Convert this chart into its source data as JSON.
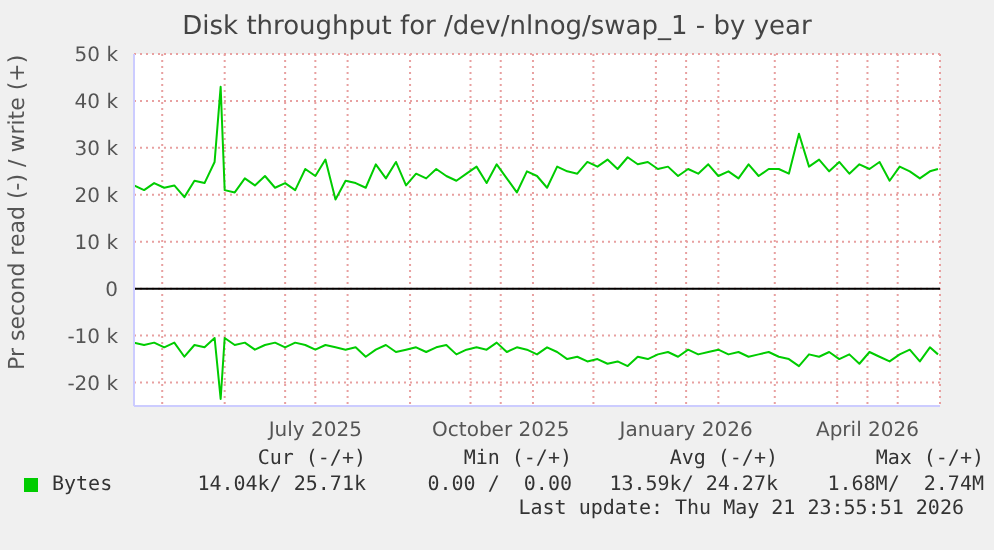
{
  "chart_data": {
    "type": "line",
    "title": "Disk throughput for /dev/nlnog/swap_1 - by year",
    "ylabel": "Pr second read (-) / write (+)",
    "x": [
      "2025-04-17",
      "2025-04-22",
      "2025-04-27",
      "2025-05-02",
      "2025-05-07",
      "2025-05-12",
      "2025-05-17",
      "2025-05-22",
      "2025-05-27",
      "2025-05-30",
      "2025-06-01",
      "2025-06-06",
      "2025-06-11",
      "2025-06-16",
      "2025-06-21",
      "2025-06-26",
      "2025-07-01",
      "2025-07-06",
      "2025-07-11",
      "2025-07-16",
      "2025-07-21",
      "2025-07-26",
      "2025-07-31",
      "2025-08-05",
      "2025-08-10",
      "2025-08-15",
      "2025-08-20",
      "2025-08-25",
      "2025-08-30",
      "2025-09-04",
      "2025-09-09",
      "2025-09-14",
      "2025-09-19",
      "2025-09-24",
      "2025-09-29",
      "2025-10-04",
      "2025-10-09",
      "2025-10-14",
      "2025-10-19",
      "2025-10-24",
      "2025-10-29",
      "2025-11-03",
      "2025-11-08",
      "2025-11-13",
      "2025-11-18",
      "2025-11-23",
      "2025-11-28",
      "2025-12-03",
      "2025-12-08",
      "2025-12-13",
      "2025-12-18",
      "2025-12-23",
      "2025-12-28",
      "2026-01-02",
      "2026-01-07",
      "2026-01-12",
      "2026-01-17",
      "2026-01-22",
      "2026-01-27",
      "2026-02-01",
      "2026-02-06",
      "2026-02-11",
      "2026-02-16",
      "2026-02-21",
      "2026-02-26",
      "2026-03-03",
      "2026-03-08",
      "2026-03-13",
      "2026-03-18",
      "2026-03-23",
      "2026-03-28",
      "2026-04-02",
      "2026-04-07",
      "2026-04-12",
      "2026-04-17",
      "2026-04-22",
      "2026-04-27",
      "2026-05-02",
      "2026-05-07",
      "2026-05-12",
      "2026-05-17",
      "2026-05-21"
    ],
    "series": [
      {
        "name": "Bytes",
        "color": "#00cc00",
        "values": [
          22000,
          21000,
          22500,
          21500,
          22000,
          19500,
          23000,
          22500,
          27000,
          43000,
          21000,
          20500,
          23500,
          22000,
          24000,
          21500,
          22500,
          21000,
          25500,
          24000,
          27500,
          19000,
          23000,
          22500,
          21500,
          26500,
          23500,
          27000,
          22000,
          24500,
          23500,
          25500,
          24000,
          23000,
          24500,
          26000,
          22500,
          26500,
          23500,
          20500,
          25000,
          24000,
          21500,
          26000,
          25000,
          24500,
          27000,
          26000,
          27500,
          25500,
          28000,
          26500,
          27000,
          25500,
          26000,
          24000,
          25500,
          24500,
          26500,
          24000,
          25000,
          23500,
          26500,
          24000,
          25500,
          25500,
          24500,
          33000,
          26000,
          27500,
          25000,
          27000,
          24500,
          26500,
          25500,
          27000,
          23000,
          26000,
          25000,
          23500,
          25000,
          25500
        ]
      },
      {
        "color": "#00cc00",
        "values": [
          -11500,
          -12000,
          -11500,
          -12500,
          -11500,
          -14500,
          -12000,
          -12500,
          -10500,
          -23500,
          -10500,
          -12000,
          -11500,
          -13000,
          -12000,
          -11500,
          -12500,
          -11500,
          -12000,
          -13000,
          -12000,
          -12500,
          -13000,
          -12500,
          -14500,
          -13000,
          -12000,
          -13500,
          -13000,
          -12500,
          -13500,
          -12500,
          -12000,
          -14000,
          -13000,
          -12500,
          -13000,
          -11500,
          -13500,
          -12500,
          -13000,
          -14000,
          -12500,
          -13500,
          -15000,
          -14500,
          -15500,
          -15000,
          -16000,
          -15500,
          -16500,
          -14500,
          -15000,
          -14000,
          -13500,
          -14500,
          -13000,
          -14000,
          -13500,
          -13000,
          -14000,
          -13500,
          -14500,
          -14000,
          -13500,
          -14500,
          -15000,
          -16500,
          -14000,
          -14500,
          -13500,
          -15000,
          -14000,
          -16000,
          -13500,
          -14500,
          -15500,
          -14000,
          -13000,
          -15500,
          -12500,
          -14000
        ]
      }
    ],
    "xlim": [
      "2025-04-17",
      "2026-05-22"
    ],
    "xticks": [
      {
        "value": "2025-05-01",
        "label": null
      },
      {
        "value": "2025-06-01",
        "label": null
      },
      {
        "value": "2025-07-01",
        "label": null
      },
      {
        "value": "2025-07-16",
        "label": "July 2025"
      },
      {
        "value": "2025-08-01",
        "label": null
      },
      {
        "value": "2025-09-01",
        "label": null
      },
      {
        "value": "2025-10-01",
        "label": null
      },
      {
        "value": "2025-10-16",
        "label": "October 2025"
      },
      {
        "value": "2025-11-01",
        "label": null
      },
      {
        "value": "2025-12-01",
        "label": null
      },
      {
        "value": "2026-01-01",
        "label": null
      },
      {
        "value": "2026-01-16",
        "label": "January 2026"
      },
      {
        "value": "2026-02-01",
        "label": null
      },
      {
        "value": "2026-03-01",
        "label": null
      },
      {
        "value": "2026-04-01",
        "label": null
      },
      {
        "value": "2026-04-16",
        "label": "April 2026"
      },
      {
        "value": "2026-05-01",
        "label": null
      }
    ],
    "ylim": [
      -25000,
      50000
    ],
    "yticks": [
      {
        "value": -20000,
        "label": "-20 k"
      },
      {
        "value": -10000,
        "label": "-10 k"
      },
      0,
      {
        "value": 10000,
        "label": "10 k"
      },
      {
        "value": 20000,
        "label": "20 k"
      },
      {
        "value": 30000,
        "label": "30 k"
      },
      {
        "value": 40000,
        "label": "40 k"
      },
      {
        "value": 50000,
        "label": "50 k"
      }
    ],
    "grid": true,
    "legend": "bottom",
    "ref_lines": [
      {
        "axis": "y",
        "value": 0,
        "color": "#000000"
      }
    ],
    "annotations": [
      "Cur (-/+)",
      "Min (-/+)",
      "Avg (-/+)",
      "Max (-/+)",
      "14.04k/ 25.71k",
      "0.00 /  0.00",
      "13.59k/ 24.27k",
      "1.68M/  2.74M",
      "Last update: Thu May 21 23:55:51 2026"
    ]
  }
}
